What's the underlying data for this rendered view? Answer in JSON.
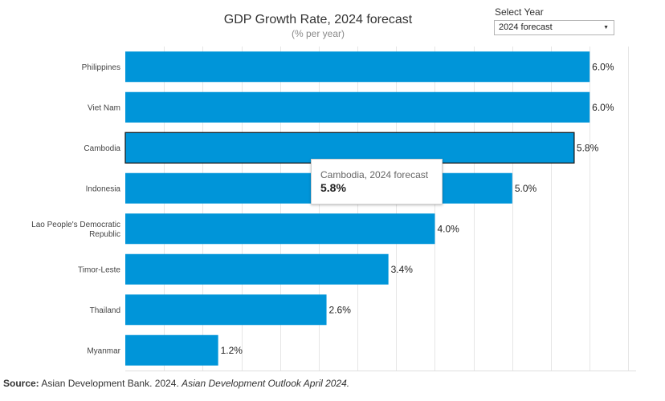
{
  "chart_data": {
    "type": "bar",
    "orientation": "horizontal",
    "title": "GDP Growth Rate, 2024 forecast",
    "subtitle": "(% per year)",
    "categories": [
      "Philippines",
      "Viet Nam",
      "Cambodia",
      "Indonesia",
      "Lao People's Democratic Republic",
      "Timor-Leste",
      "Thailand",
      "Myanmar"
    ],
    "values": [
      6.0,
      6.0,
      5.8,
      5.0,
      4.0,
      3.4,
      2.6,
      1.2
    ],
    "value_labels": [
      "6.0%",
      "6.0%",
      "5.8%",
      "5.0%",
      "4.0%",
      "3.4%",
      "2.6%",
      "1.2%"
    ],
    "xlim": [
      0,
      6.6
    ],
    "grid": "vertical",
    "highlighted": "Cambodia",
    "bar_color": "#0095d9"
  },
  "filter": {
    "label": "Select Year",
    "selected": "2024 forecast",
    "arrow_icon": "triangle-down-icon"
  },
  "tooltip": {
    "title": "Cambodia, 2024 forecast",
    "value": "5.8%"
  },
  "source": {
    "label": "Source:",
    "text": " Asian Development Bank. 2024. ",
    "publication": "Asian Development Outlook April 2024."
  }
}
